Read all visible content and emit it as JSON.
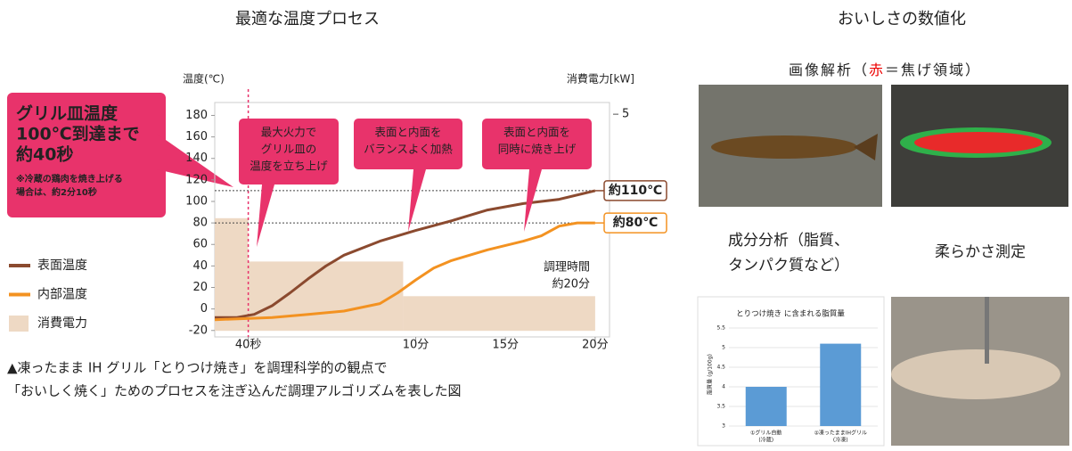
{
  "titles": {
    "left": "最適な温度プロセス",
    "right": "おいしさの数値化"
  },
  "chart_data": [
    {
      "type": "line",
      "ylabel": "温度(℃)",
      "y2label": "消費電力[kW]",
      "xlim": [
        -1.2,
        20.8
      ],
      "xticks": [
        {
          "value": 0.667,
          "label": "40秒"
        },
        {
          "value": 10,
          "label": "10分"
        },
        {
          "value": 15,
          "label": "15分"
        },
        {
          "value": 20,
          "label": "20分"
        }
      ],
      "ylim": [
        -26,
        192
      ],
      "yticks": [
        -20,
        0,
        20,
        40,
        60,
        80,
        100,
        120,
        140,
        160,
        180
      ],
      "y2lim": [
        -0.14,
        5.27
      ],
      "y2ticks": [
        5
      ],
      "series": [
        {
          "name": "表面温度",
          "color": "#8b4a2f",
          "x": [
            -1.2,
            0,
            1,
            2,
            3,
            4,
            5,
            6,
            8,
            10,
            12,
            14,
            16,
            18,
            20
          ],
          "values": [
            -8,
            -8,
            -5,
            3,
            15,
            28,
            40,
            50,
            63,
            73,
            82,
            92,
            98,
            102,
            110
          ]
        },
        {
          "name": "内部温度",
          "color": "#f39221",
          "x": [
            -1.2,
            2,
            4,
            6,
            8,
            9,
            10,
            11,
            12,
            14,
            16,
            17,
            18,
            19,
            20
          ],
          "values": [
            -10,
            -8,
            -5,
            -2,
            5,
            15,
            27,
            38,
            45,
            55,
            63,
            68,
            77,
            80,
            80
          ]
        },
        {
          "name": "消費電力",
          "color": "#eed9c4",
          "axis": "y2",
          "bins": [
            -1.2,
            0.667,
            9.3,
            20
          ],
          "values": [
            2.6,
            1.6,
            0.8
          ]
        }
      ],
      "reference_lines": [
        {
          "value": 110,
          "label": "約110℃",
          "color": "#8b4a2f"
        },
        {
          "value": 80,
          "label": "約80℃",
          "color": "#f39221"
        }
      ],
      "grill_box": {
        "headline": [
          "グリル皿温度",
          "100℃到達まで",
          "約40秒"
        ],
        "note": [
          "※冷蔵の鶏肉を焼き上げる",
          "場合は、約2分10秒"
        ]
      },
      "callouts": [
        [
          "最大火力で",
          "グリル皿の",
          "温度を立ち上げ"
        ],
        [
          "表面と内面を",
          "バランスよく加熱"
        ],
        [
          "表面と内面を",
          "同時に焼き上げ"
        ]
      ],
      "duration": [
        "調理時間",
        "約20分"
      ]
    },
    {
      "type": "bar",
      "title": "とりつけ焼き に含まれる脂質量",
      "ylabel": "脂質量 (g/100g)",
      "categories": [
        "①グリル自動",
        "②凍ったままIHグリル"
      ],
      "category_notes": [
        "(冷蔵)",
        "(冷凍)"
      ],
      "values": [
        4.0,
        5.1
      ],
      "color": "#5b9bd5",
      "ylim": [
        3,
        5.5
      ],
      "yticks": [
        3,
        3.5,
        4,
        4.5,
        5,
        5.5
      ]
    }
  ],
  "caption": [
    "▲凍ったまま IH グリル「とりつけ焼き」を調理科学的の観点で",
    "「おいしく焼く」ためのプロセスを注ぎ込んだ調理アルゴリズムを表した図"
  ],
  "image_analysis": [
    "画像解析（",
    "赤",
    "＝焦げ領域）"
  ],
  "component_label": [
    "成分分析（脂質、",
    "タンパク質など）"
  ],
  "softness_label": "柔らかさ測定"
}
